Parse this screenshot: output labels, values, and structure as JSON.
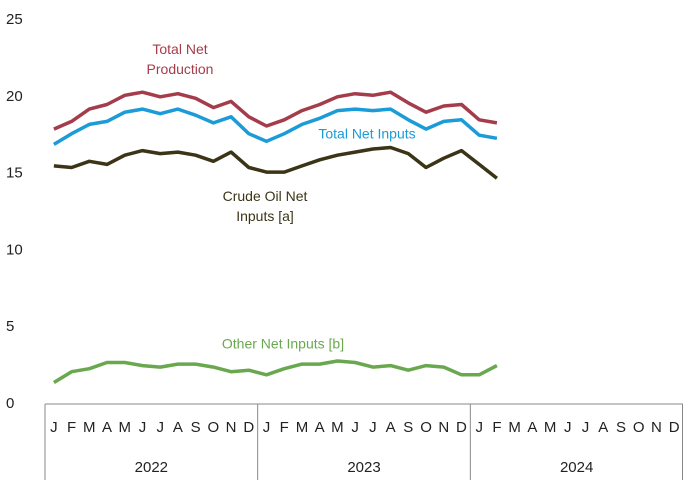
{
  "chart_data": {
    "type": "line",
    "categories": [
      "J",
      "F",
      "M",
      "A",
      "M",
      "J",
      "J",
      "A",
      "S",
      "O",
      "N",
      "D",
      "J",
      "F",
      "M",
      "A",
      "M",
      "J",
      "J",
      "A",
      "S",
      "O",
      "N",
      "D",
      "J",
      "F",
      "M",
      "A",
      "M",
      "J",
      "J",
      "A",
      "S",
      "O",
      "N",
      "D"
    ],
    "years": [
      "2022",
      "2023",
      "2024"
    ],
    "series": [
      {
        "name": "Total Net Production",
        "color": "#a53c4b",
        "values": [
          17.9,
          18.4,
          19.2,
          19.5,
          20.1,
          20.3,
          20.0,
          20.2,
          19.9,
          19.3,
          19.7,
          18.7,
          18.1,
          18.5,
          19.1,
          19.5,
          20.0,
          20.2,
          20.1,
          20.3,
          19.6,
          19.0,
          19.4,
          19.5,
          18.5,
          18.3,
          null,
          null,
          null,
          null,
          null,
          null,
          null,
          null,
          null,
          null
        ]
      },
      {
        "name": "Total Net Inputs",
        "color": "#1b9bd7",
        "values": [
          16.9,
          17.6,
          18.2,
          18.4,
          19.0,
          19.2,
          18.9,
          19.2,
          18.8,
          18.3,
          18.7,
          17.6,
          17.1,
          17.6,
          18.2,
          18.6,
          19.1,
          19.2,
          19.1,
          19.2,
          18.5,
          17.9,
          18.4,
          18.5,
          17.5,
          17.3,
          null,
          null,
          null,
          null,
          null,
          null,
          null,
          null,
          null,
          null
        ]
      },
      {
        "name": "Crude Oil Net Inputs [a]",
        "color": "#3b3416",
        "values": [
          15.5,
          15.4,
          15.8,
          15.6,
          16.2,
          16.5,
          16.3,
          16.4,
          16.2,
          15.8,
          16.4,
          15.4,
          15.1,
          15.1,
          15.5,
          15.9,
          16.2,
          16.4,
          16.6,
          16.7,
          16.3,
          15.4,
          16.0,
          16.5,
          15.6,
          14.7,
          null,
          null,
          null,
          null,
          null,
          null,
          null,
          null,
          null,
          null
        ]
      },
      {
        "name": "Other Net Inputs [b]",
        "color": "#6aa84f",
        "values": [
          1.4,
          2.1,
          2.3,
          2.7,
          2.7,
          2.5,
          2.4,
          2.6,
          2.6,
          2.4,
          2.1,
          2.2,
          1.9,
          2.3,
          2.6,
          2.6,
          2.8,
          2.7,
          2.4,
          2.5,
          2.2,
          2.5,
          2.4,
          1.9,
          1.9,
          2.5,
          null,
          null,
          null,
          null,
          null,
          null,
          null,
          null,
          null,
          null
        ]
      }
    ],
    "ylim": [
      0,
      25
    ],
    "yticks": [
      0,
      5,
      10,
      15,
      20,
      25
    ],
    "grid": false
  }
}
